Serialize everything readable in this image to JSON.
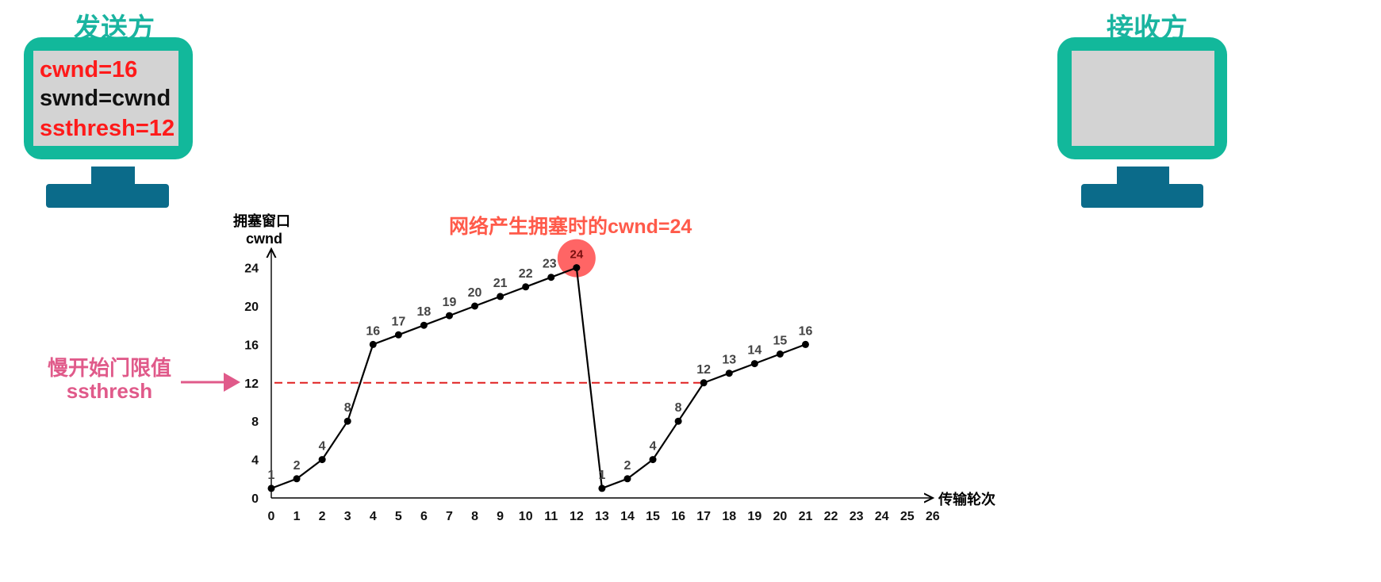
{
  "sender": {
    "label": "发送方",
    "screen_lines": [
      {
        "text": "cwnd=16",
        "color": "#ff1a1a"
      },
      {
        "text": "swnd=cwnd",
        "color": "#111111"
      },
      {
        "text": "ssthresh=12",
        "color": "#ff1a1a"
      }
    ]
  },
  "receiver": {
    "label": "接收方"
  },
  "annotations": {
    "congestion_note": "网络产生拥塞时的cwnd=24",
    "ssthresh_line1": "慢开始门限值",
    "ssthresh_line2": "ssthresh"
  },
  "colors": {
    "teal": "#12b89b",
    "dark_teal": "#0b6b8a",
    "red": "#ff1a1a",
    "pink": "#e05a8a",
    "dashed_line": "#e02020"
  },
  "chart_data": {
    "type": "line",
    "ylabel_line1": "拥塞窗口",
    "ylabel_line2": "cwnd",
    "xlabel": "传输轮次",
    "x_ticks": [
      0,
      1,
      2,
      3,
      4,
      5,
      6,
      7,
      8,
      9,
      10,
      11,
      12,
      13,
      14,
      15,
      16,
      17,
      18,
      19,
      20,
      21,
      22,
      23,
      24,
      25,
      26
    ],
    "y_ticks": [
      0,
      4,
      8,
      12,
      16,
      20,
      24
    ],
    "xlim": [
      0,
      26
    ],
    "ylim": [
      0,
      24
    ],
    "series": [
      {
        "x": [
          0,
          1,
          2,
          3,
          4,
          5,
          6,
          7,
          8,
          9,
          10,
          11,
          12,
          13,
          14,
          15,
          16,
          17,
          18,
          19,
          20,
          21
        ],
        "values": [
          1,
          2,
          4,
          8,
          16,
          17,
          18,
          19,
          20,
          21,
          22,
          23,
          24,
          1,
          2,
          4,
          8,
          12,
          13,
          14,
          15,
          16
        ]
      }
    ],
    "point_labels": [
      "1",
      "2",
      "4",
      "8",
      "16",
      "17",
      "18",
      "19",
      "20",
      "21",
      "22",
      "23",
      "24",
      "1",
      "2",
      "4",
      "8",
      "12",
      "13",
      "14",
      "15",
      "16"
    ],
    "threshold": 12,
    "highlight_index": 12
  }
}
